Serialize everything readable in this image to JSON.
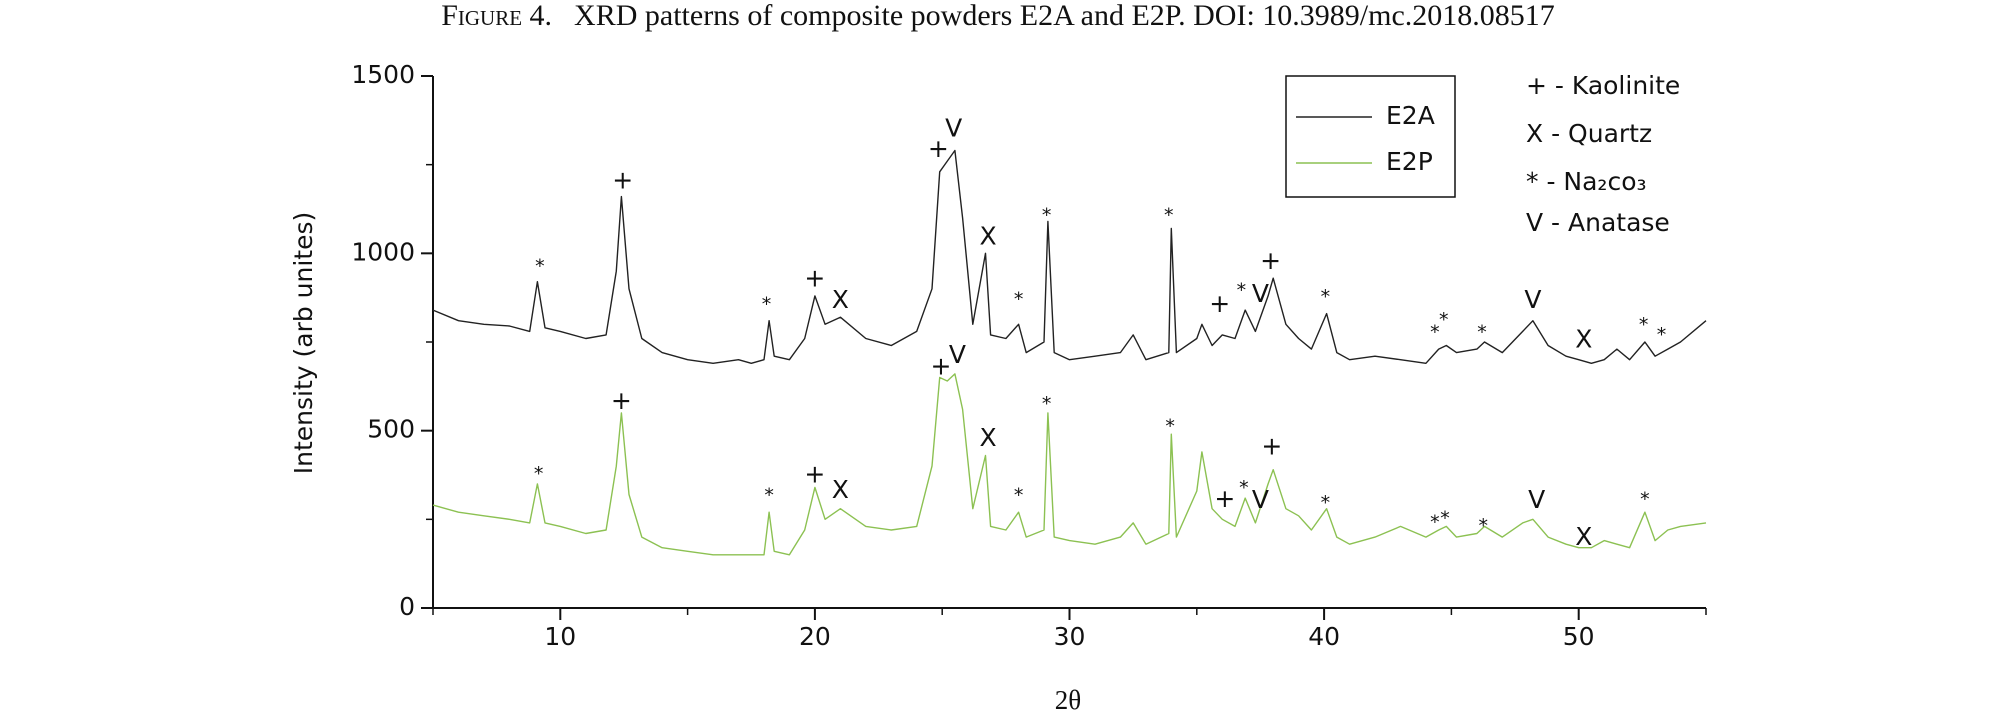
{
  "chart_data": {
    "type": "line",
    "figure_label": "Figure 4.",
    "title": "XRD patterns of composite powders E2A and E2P. DOI: 10.3989/mc.2018.08517",
    "x_label": "2θ",
    "y_label": "Intensity (arb unites)",
    "xlim": [
      5,
      55
    ],
    "xticks": [
      10,
      20,
      30,
      40,
      50
    ],
    "xminorticks": [
      5,
      15,
      25,
      35,
      45,
      55
    ],
    "ylim": [
      0,
      1500
    ],
    "yticks": [
      0,
      500,
      1000,
      1500
    ],
    "yminorticks": [
      250,
      750,
      1250
    ],
    "x": [
      5,
      6,
      7,
      8,
      8.8,
      9.1,
      9.4,
      10,
      11,
      11.8,
      12.2,
      12.4,
      12.7,
      13.2,
      14,
      15,
      16,
      17,
      17.5,
      18,
      18.2,
      18.4,
      19,
      19.6,
      20,
      20.4,
      21,
      22,
      23,
      24,
      24.6,
      24.9,
      25.2,
      25.5,
      25.8,
      26.2,
      26.7,
      26.9,
      27.5,
      28,
      28.3,
      29,
      29.15,
      29.4,
      30,
      31,
      32,
      32.5,
      33,
      33.9,
      34,
      34.2,
      35,
      35.2,
      35.6,
      36,
      36.5,
      36.9,
      37.3,
      37.8,
      38,
      38.5,
      39,
      39.5,
      40.1,
      40.5,
      41,
      42,
      43,
      44,
      44.5,
      44.8,
      45.2,
      46,
      46.3,
      47,
      47.8,
      48.2,
      48.8,
      49.5,
      50,
      50.5,
      51,
      51.5,
      52,
      52.6,
      53,
      53.5,
      54,
      55
    ],
    "series": [
      {
        "name": "E2A",
        "color": "#222222",
        "values": [
          840,
          810,
          800,
          795,
          780,
          920,
          790,
          780,
          760,
          770,
          950,
          1160,
          900,
          760,
          720,
          700,
          690,
          700,
          690,
          700,
          810,
          710,
          700,
          760,
          880,
          800,
          820,
          760,
          740,
          780,
          900,
          1230,
          1260,
          1290,
          1100,
          800,
          1000,
          770,
          760,
          800,
          720,
          750,
          1090,
          720,
          700,
          710,
          720,
          770,
          700,
          720,
          1070,
          720,
          760,
          800,
          740,
          770,
          760,
          840,
          780,
          880,
          930,
          800,
          760,
          730,
          830,
          720,
          700,
          710,
          700,
          690,
          730,
          740,
          720,
          730,
          750,
          720,
          780,
          810,
          740,
          710,
          700,
          690,
          700,
          730,
          700,
          750,
          710,
          730,
          750,
          810
        ]
      },
      {
        "name": "E2P",
        "color": "#8cc152",
        "values": [
          290,
          270,
          260,
          250,
          240,
          350,
          240,
          230,
          210,
          220,
          400,
          550,
          320,
          200,
          170,
          160,
          150,
          150,
          150,
          150,
          270,
          160,
          150,
          220,
          340,
          250,
          280,
          230,
          220,
          230,
          400,
          650,
          640,
          660,
          560,
          280,
          430,
          230,
          220,
          270,
          200,
          220,
          550,
          200,
          190,
          180,
          200,
          240,
          180,
          210,
          490,
          200,
          330,
          440,
          280,
          250,
          230,
          310,
          240,
          350,
          390,
          280,
          260,
          220,
          280,
          200,
          180,
          200,
          230,
          200,
          220,
          230,
          200,
          210,
          230,
          200,
          240,
          250,
          200,
          180,
          170,
          170,
          190,
          180,
          170,
          270,
          190,
          220,
          230,
          240
        ]
      }
    ],
    "annotations": [
      {
        "text": "*",
        "x": 9.2,
        "y": 961
      },
      {
        "text": "+",
        "x": 12.45,
        "y": 1202
      },
      {
        "text": "*",
        "x": 18.1,
        "y": 854
      },
      {
        "text": "+",
        "x": 20,
        "y": 926
      },
      {
        "text": "X",
        "x": 21,
        "y": 865
      },
      {
        "text": "+",
        "x": 24.85,
        "y": 1292
      },
      {
        "text": "V",
        "x": 25.45,
        "y": 1349
      },
      {
        "text": "X",
        "x": 26.8,
        "y": 1044
      },
      {
        "text": "*",
        "x": 28,
        "y": 868
      },
      {
        "text": "*",
        "x": 29.1,
        "y": 1105
      },
      {
        "text": "*",
        "x": 33.9,
        "y": 1105
      },
      {
        "text": "+",
        "x": 35.9,
        "y": 854
      },
      {
        "text": "*",
        "x": 36.75,
        "y": 894
      },
      {
        "text": "V",
        "x": 37.5,
        "y": 883
      },
      {
        "text": "+",
        "x": 37.9,
        "y": 976
      },
      {
        "text": "*",
        "x": 40.05,
        "y": 876
      },
      {
        "text": "*",
        "x": 44.35,
        "y": 775
      },
      {
        "text": "*",
        "x": 44.7,
        "y": 811
      },
      {
        "text": "*",
        "x": 46.2,
        "y": 775
      },
      {
        "text": "V",
        "x": 48.2,
        "y": 865
      },
      {
        "text": "X",
        "x": 50.2,
        "y": 754
      },
      {
        "text": "*",
        "x": 52.55,
        "y": 797
      },
      {
        "text": "*",
        "x": 53.25,
        "y": 768
      },
      {
        "text": "*",
        "x": 9.15,
        "y": 377
      },
      {
        "text": "+",
        "x": 12.4,
        "y": 581
      },
      {
        "text": "*",
        "x": 18.2,
        "y": 316
      },
      {
        "text": "+",
        "x": 20,
        "y": 373
      },
      {
        "text": "X",
        "x": 21,
        "y": 330
      },
      {
        "text": "+",
        "x": 24.95,
        "y": 678
      },
      {
        "text": "V",
        "x": 25.6,
        "y": 711
      },
      {
        "text": "X",
        "x": 26.8,
        "y": 477
      },
      {
        "text": "*",
        "x": 28,
        "y": 316
      },
      {
        "text": "*",
        "x": 29.1,
        "y": 574
      },
      {
        "text": "*",
        "x": 33.95,
        "y": 510
      },
      {
        "text": "+",
        "x": 36.1,
        "y": 305
      },
      {
        "text": "*",
        "x": 36.85,
        "y": 337
      },
      {
        "text": "V",
        "x": 37.5,
        "y": 301
      },
      {
        "text": "+",
        "x": 37.95,
        "y": 452
      },
      {
        "text": "*",
        "x": 40.05,
        "y": 294
      },
      {
        "text": "*",
        "x": 44.35,
        "y": 240
      },
      {
        "text": "*",
        "x": 44.75,
        "y": 251
      },
      {
        "text": "*",
        "x": 46.25,
        "y": 230
      },
      {
        "text": "V",
        "x": 48.35,
        "y": 301
      },
      {
        "text": "X",
        "x": 50.2,
        "y": 197
      },
      {
        "text": "*",
        "x": 52.6,
        "y": 305
      }
    ],
    "phase_key": [
      "+ - Kaolinite",
      "X - Quartz",
      "* - Na₂co₃",
      "V - Anatase"
    ]
  }
}
